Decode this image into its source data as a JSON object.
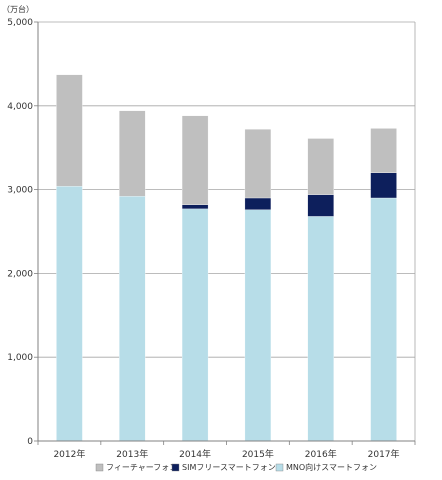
{
  "chart_data": {
    "type": "bar",
    "stacked": true,
    "unit": "（万台）",
    "categories": [
      "2012年",
      "2013年",
      "2014年",
      "2015年",
      "2016年",
      "2017年"
    ],
    "ylim": [
      0,
      5000
    ],
    "yticks": [
      0,
      1000,
      2000,
      3000,
      4000,
      5000
    ],
    "ytick_labels": [
      "0",
      "1,000",
      "2,000",
      "3,000",
      "4,000",
      "5,000"
    ],
    "grid": true,
    "legend_position": "bottom",
    "series": [
      {
        "name": "MNO向けスマートフォン",
        "color": "#b7dde8",
        "values": [
          3040,
          2920,
          2770,
          2760,
          2680,
          2900
        ]
      },
      {
        "name": "SIMフリースマートフォン",
        "color": "#0d1f5c",
        "values": [
          0,
          0,
          50,
          140,
          260,
          300
        ]
      },
      {
        "name": "フィーチャーフォン",
        "color": "#bfbfbf",
        "values": [
          1330,
          1020,
          1060,
          820,
          670,
          530
        ]
      }
    ],
    "legend_order": [
      2,
      1,
      0
    ]
  }
}
